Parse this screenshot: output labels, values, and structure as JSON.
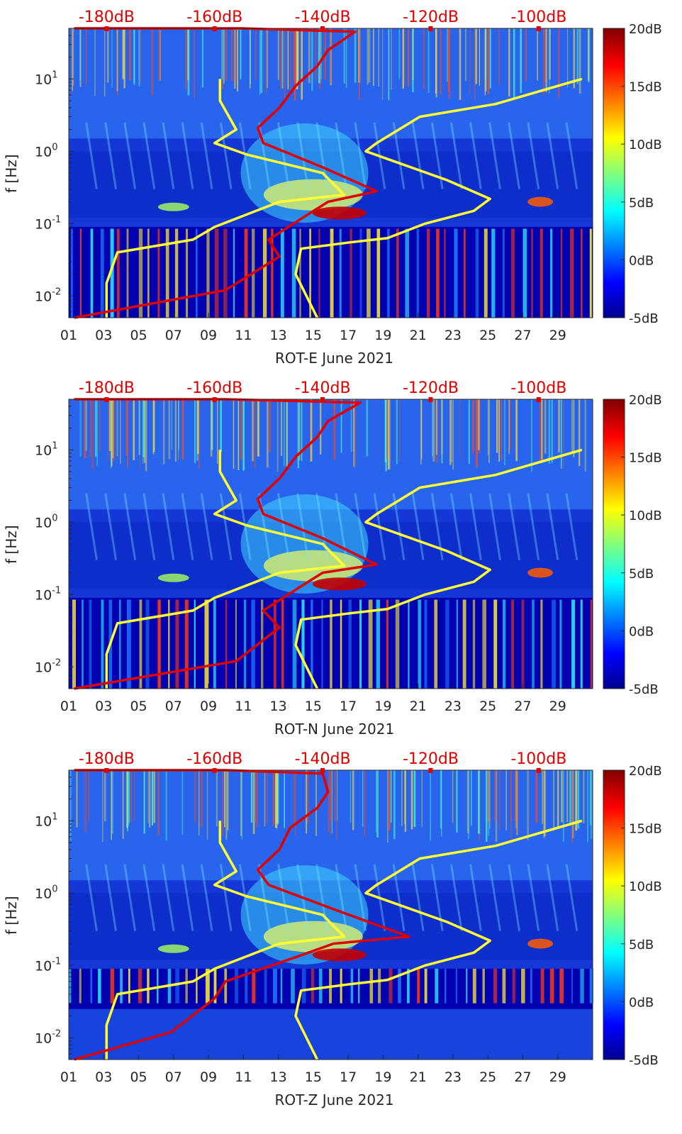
{
  "chart_data": {
    "type": "heatmap",
    "title": "",
    "ylabel": "f [Hz]",
    "y_scale": "log",
    "ylim_hz": [
      0.005,
      50
    ],
    "y_ticks": [
      {
        "value": 10,
        "base": "10",
        "exp": "1"
      },
      {
        "value": 1,
        "base": "10",
        "exp": "0"
      },
      {
        "value": 0.1,
        "base": "10",
        "exp": "-1"
      },
      {
        "value": 0.01,
        "base": "10",
        "exp": "-2"
      }
    ],
    "x_ticks": [
      "01",
      "03",
      "05",
      "07",
      "09",
      "11",
      "13",
      "15",
      "17",
      "19",
      "21",
      "23",
      "25",
      "27",
      "29"
    ],
    "xlim_days": [
      1,
      31
    ],
    "top_axis": {
      "unit": "dB",
      "labels": [
        "-180dB",
        "-160dB",
        "-140dB",
        "-120dB",
        "-100dB"
      ],
      "values": [
        -180,
        -160,
        -140,
        -120,
        -100
      ],
      "range": [
        -187,
        -90
      ]
    },
    "colorbar": {
      "range_db": [
        -5,
        20
      ],
      "labels": [
        "20dB",
        "15dB",
        "10dB",
        "5dB",
        "0dB",
        "-5dB"
      ],
      "values": [
        20,
        15,
        10,
        5,
        0,
        -5
      ]
    },
    "panels": [
      {
        "xlabel": "ROT-E June 2021",
        "red_curve_db_vs_hz": [
          [
            -186,
            0.005
          ],
          [
            -158,
            0.012
          ],
          [
            -148,
            0.035
          ],
          [
            -150,
            0.06
          ],
          [
            -143,
            0.13
          ],
          [
            -139,
            0.2
          ],
          [
            -130,
            0.28
          ],
          [
            -140,
            0.6
          ],
          [
            -151,
            1.3
          ],
          [
            -152,
            2.1
          ],
          [
            -148,
            4
          ],
          [
            -145,
            8
          ],
          [
            -141,
            15
          ],
          [
            -139,
            25
          ],
          [
            -134,
            45
          ],
          [
            -155,
            50
          ],
          [
            -186,
            50
          ]
        ],
        "yellow_low_db_vs_hz": [
          [
            -180,
            0.005
          ],
          [
            -180,
            0.015
          ],
          [
            -178,
            0.04
          ],
          [
            -164,
            0.06
          ],
          [
            -160,
            0.09
          ],
          [
            -148,
            0.2
          ],
          [
            -136,
            0.25
          ],
          [
            -140,
            0.5
          ],
          [
            -154,
            0.9
          ],
          [
            -160,
            1.3
          ],
          [
            -156,
            2.0
          ],
          [
            -159,
            5
          ],
          [
            -159,
            10
          ]
        ],
        "yellow_high_db_vs_hz": [
          [
            -141,
            0.005
          ],
          [
            -145,
            0.02
          ],
          [
            -144,
            0.045
          ],
          [
            -135,
            0.055
          ],
          [
            -128,
            0.063
          ],
          [
            -121,
            0.1
          ],
          [
            -112,
            0.15
          ],
          [
            -109,
            0.22
          ],
          [
            -117,
            0.4
          ],
          [
            -132,
            1.0
          ],
          [
            -130,
            1.3
          ],
          [
            -122,
            3
          ],
          [
            -108,
            4.5
          ],
          [
            -92,
            10
          ]
        ]
      },
      {
        "xlabel": "ROT-N June 2021",
        "red_curve_db_vs_hz": [
          [
            -186,
            0.005
          ],
          [
            -156,
            0.012
          ],
          [
            -148,
            0.035
          ],
          [
            -151,
            0.06
          ],
          [
            -144,
            0.13
          ],
          [
            -140,
            0.2
          ],
          [
            -130,
            0.26
          ],
          [
            -140,
            0.6
          ],
          [
            -151,
            1.3
          ],
          [
            -152,
            2.1
          ],
          [
            -148,
            4
          ],
          [
            -145,
            8
          ],
          [
            -141,
            15
          ],
          [
            -139,
            25
          ],
          [
            -133,
            45
          ],
          [
            -158,
            50
          ],
          [
            -186,
            50
          ]
        ],
        "yellow_low_db_vs_hz": [
          [
            -180,
            0.005
          ],
          [
            -180,
            0.015
          ],
          [
            -178,
            0.04
          ],
          [
            -164,
            0.06
          ],
          [
            -160,
            0.09
          ],
          [
            -148,
            0.2
          ],
          [
            -136,
            0.25
          ],
          [
            -140,
            0.5
          ],
          [
            -154,
            0.9
          ],
          [
            -160,
            1.3
          ],
          [
            -156,
            2.0
          ],
          [
            -159,
            5
          ],
          [
            -159,
            10
          ]
        ],
        "yellow_high_db_vs_hz": [
          [
            -141,
            0.005
          ],
          [
            -145,
            0.02
          ],
          [
            -144,
            0.045
          ],
          [
            -135,
            0.055
          ],
          [
            -128,
            0.063
          ],
          [
            -121,
            0.1
          ],
          [
            -112,
            0.15
          ],
          [
            -109,
            0.22
          ],
          [
            -117,
            0.4
          ],
          [
            -132,
            1.0
          ],
          [
            -130,
            1.3
          ],
          [
            -122,
            3
          ],
          [
            -108,
            4.5
          ],
          [
            -92,
            10
          ]
        ]
      },
      {
        "xlabel": "ROT-Z June 2021",
        "red_curve_db_vs_hz": [
          [
            -186,
            0.005
          ],
          [
            -168,
            0.012
          ],
          [
            -160,
            0.035
          ],
          [
            -158,
            0.06
          ],
          [
            -145,
            0.13
          ],
          [
            -138,
            0.2
          ],
          [
            -124,
            0.25
          ],
          [
            -138,
            0.6
          ],
          [
            -150,
            1.3
          ],
          [
            -152,
            2.1
          ],
          [
            -148,
            4
          ],
          [
            -146,
            8
          ],
          [
            -141,
            15
          ],
          [
            -139,
            25
          ],
          [
            -140,
            45
          ],
          [
            -158,
            50
          ],
          [
            -186,
            50
          ]
        ],
        "yellow_low_db_vs_hz": [
          [
            -180,
            0.005
          ],
          [
            -180,
            0.015
          ],
          [
            -178,
            0.04
          ],
          [
            -164,
            0.06
          ],
          [
            -160,
            0.09
          ],
          [
            -148,
            0.2
          ],
          [
            -136,
            0.25
          ],
          [
            -140,
            0.5
          ],
          [
            -154,
            0.9
          ],
          [
            -160,
            1.3
          ],
          [
            -156,
            2.0
          ],
          [
            -159,
            5
          ],
          [
            -159,
            10
          ]
        ],
        "yellow_high_db_vs_hz": [
          [
            -141,
            0.005
          ],
          [
            -145,
            0.02
          ],
          [
            -144,
            0.045
          ],
          [
            -135,
            0.055
          ],
          [
            -128,
            0.063
          ],
          [
            -121,
            0.1
          ],
          [
            -112,
            0.15
          ],
          [
            -109,
            0.22
          ],
          [
            -117,
            0.4
          ],
          [
            -132,
            1.0
          ],
          [
            -130,
            1.3
          ],
          [
            -122,
            3
          ],
          [
            -108,
            4.5
          ],
          [
            -92,
            10
          ]
        ]
      }
    ],
    "curve_colors": {
      "red": "#e00000",
      "yellow": "#ffff33"
    }
  }
}
